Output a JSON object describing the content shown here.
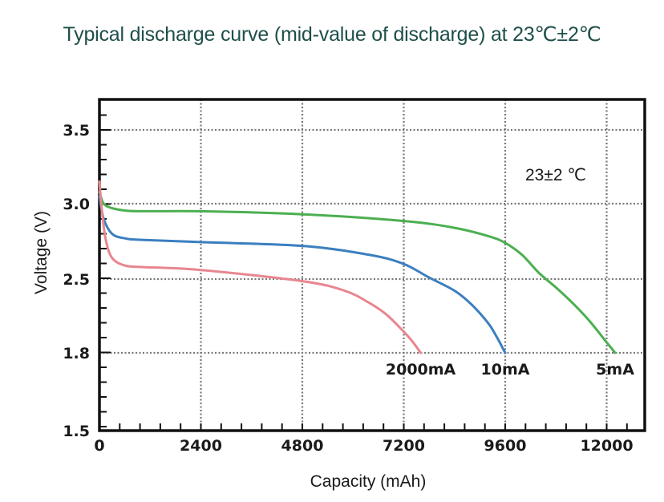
{
  "chart_data": {
    "type": "line",
    "title": "Typical discharge curve (mid-value of discharge) at 23℃±2℃",
    "xlabel": "Capacity (mAh)",
    "ylabel": "Voltage (V)",
    "xlim": [
      0,
      13000
    ],
    "ylim": [
      1.5,
      3.7
    ],
    "x_ticks": [
      0,
      2400,
      4800,
      7200,
      9600,
      12000
    ],
    "y_ticks": [
      1.5,
      1.8,
      2.5,
      3.0,
      3.5
    ],
    "grid": true,
    "annotation": "23±2 ℃",
    "series": [
      {
        "name": "5mA",
        "color": "#4caf50",
        "x": [
          0,
          100,
          300,
          600,
          1000,
          2400,
          4800,
          7200,
          8400,
          9200,
          9600,
          10000,
          10400,
          10800,
          11200,
          11600,
          12000,
          12200
        ],
        "y": [
          3.08,
          3.0,
          2.97,
          2.955,
          2.95,
          2.95,
          2.93,
          2.885,
          2.84,
          2.785,
          2.74,
          2.66,
          2.54,
          2.42,
          2.27,
          2.1,
          1.9,
          1.8
        ]
      },
      {
        "name": "10mA",
        "color": "#3b7fc0",
        "x": [
          0,
          100,
          300,
          600,
          1000,
          2400,
          4800,
          6400,
          7200,
          7800,
          8400,
          8800,
          9200,
          9400,
          9600
        ],
        "y": [
          3.05,
          2.9,
          2.8,
          2.77,
          2.76,
          2.745,
          2.72,
          2.66,
          2.6,
          2.51,
          2.39,
          2.26,
          2.08,
          1.95,
          1.8
        ]
      },
      {
        "name": "2000mA",
        "color": "#e8868f",
        "x": [
          0,
          60,
          150,
          300,
          600,
          1000,
          2400,
          4800,
          5800,
          6400,
          6800,
          7200,
          7400,
          7600
        ],
        "y": [
          3.15,
          2.95,
          2.76,
          2.64,
          2.59,
          2.58,
          2.56,
          2.48,
          2.39,
          2.27,
          2.16,
          2.0,
          1.91,
          1.8
        ]
      }
    ]
  }
}
